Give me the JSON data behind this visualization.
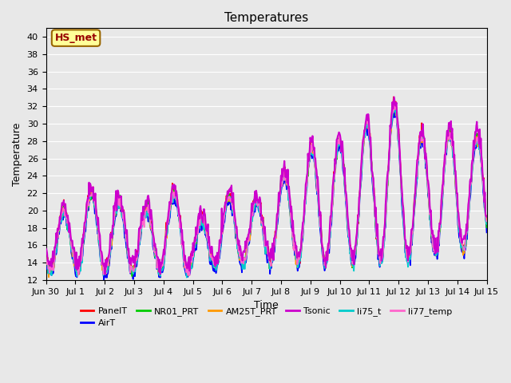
{
  "title": "Temperatures",
  "xlabel": "Time",
  "ylabel": "Temperature",
  "ylim": [
    12,
    41
  ],
  "yticks": [
    12,
    14,
    16,
    18,
    20,
    22,
    24,
    26,
    28,
    30,
    32,
    34,
    36,
    38,
    40
  ],
  "bg_color": "#e8e8e8",
  "plot_bg_color": "#e8e8e8",
  "annotation_text": "HS_met",
  "annotation_bg": "#ffff99",
  "annotation_border": "#996600",
  "annotation_text_color": "#990000",
  "series": [
    {
      "label": "PanelT",
      "color": "#ff0000",
      "lw": 1.2,
      "zorder": 3
    },
    {
      "label": "AirT",
      "color": "#0000ff",
      "lw": 1.2,
      "zorder": 3
    },
    {
      "label": "NR01_PRT",
      "color": "#00cc00",
      "lw": 1.2,
      "zorder": 3
    },
    {
      "label": "AM25T_PRT",
      "color": "#ff9900",
      "lw": 1.2,
      "zorder": 3
    },
    {
      "label": "Tsonic",
      "color": "#cc00cc",
      "lw": 1.5,
      "zorder": 4
    },
    {
      "label": "li75_t",
      "color": "#00cccc",
      "lw": 1.2,
      "zorder": 3
    },
    {
      "label": "li77_temp",
      "color": "#ff66cc",
      "lw": 1.2,
      "zorder": 3
    }
  ],
  "xtick_labels": [
    "Jun 30",
    "Jul 1",
    "Jul 2",
    "Jul 3",
    "Jul 4",
    "Jul 5",
    "Jul 6",
    "Jul 7",
    "Jul 8",
    "Jul 9",
    "Jul 10",
    "Jul 11",
    "Jul 12",
    "Jul 13",
    "Jul 14",
    "Jul 15"
  ],
  "n_days": 16,
  "pts_per_day": 48
}
